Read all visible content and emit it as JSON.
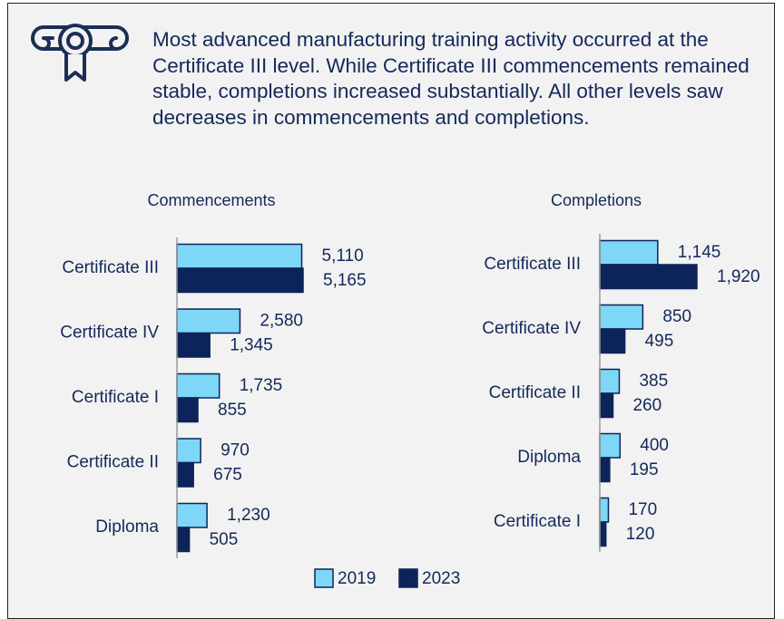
{
  "description": "Most advanced manufacturing training activity occurred at the Certificate III level. While Certificate III commencements remained stable, completions increased substantially. All other levels saw decreases in commencements and completions.",
  "chart_data": [
    {
      "type": "bar",
      "orientation": "horizontal",
      "title": "Commencements",
      "categories": [
        "Certificate III",
        "Certificate IV",
        "Certificate I",
        "Certificate II",
        "Diploma"
      ],
      "series": [
        {
          "name": "2019",
          "color": "#7fd7f7",
          "values": [
            5110,
            2580,
            1735,
            970,
            1230
          ],
          "value_labels": [
            "5,110",
            "2,580",
            "1,735",
            "970",
            "1,230"
          ]
        },
        {
          "name": "2023",
          "color": "#0c2459",
          "values": [
            5165,
            1345,
            855,
            675,
            505
          ],
          "value_labels": [
            "5,165",
            "1,345",
            "855",
            "675",
            "505"
          ]
        }
      ]
    },
    {
      "type": "bar",
      "orientation": "horizontal",
      "title": "Completions",
      "categories": [
        "Certificate III",
        "Certificate IV",
        "Certificate II",
        "Diploma",
        "Certificate I"
      ],
      "series": [
        {
          "name": "2019",
          "color": "#7fd7f7",
          "values": [
            1145,
            850,
            385,
            400,
            170
          ],
          "value_labels": [
            "1,145",
            "850",
            "385",
            "400",
            "170"
          ]
        },
        {
          "name": "2023",
          "color": "#0c2459",
          "values": [
            1920,
            495,
            260,
            195,
            120
          ],
          "value_labels": [
            "1,920",
            "495",
            "260",
            "195",
            "120"
          ]
        }
      ]
    }
  ]
}
